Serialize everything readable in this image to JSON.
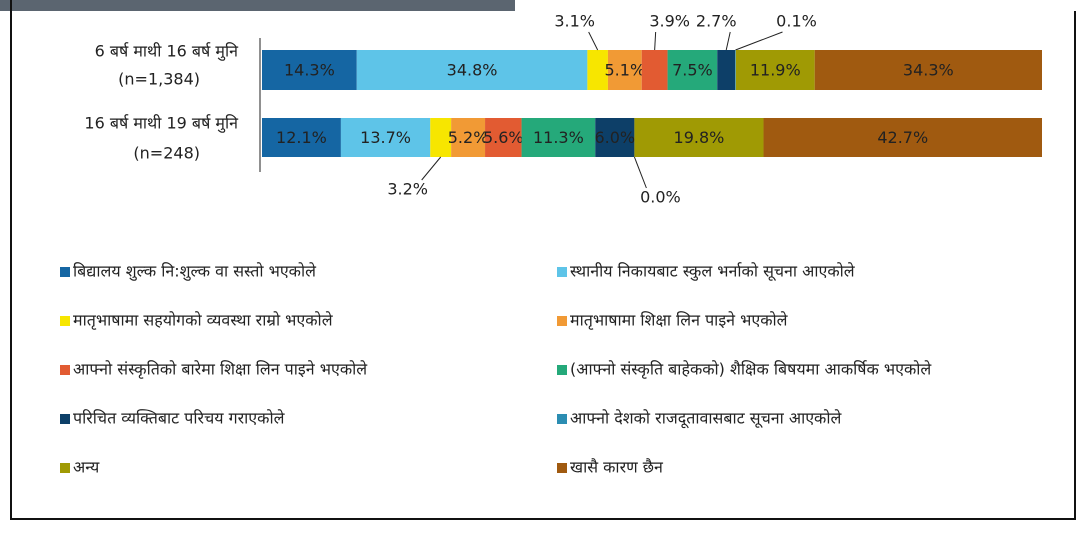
{
  "chart_data": {
    "type": "bar",
    "stacked": true,
    "orientation": "horizontal",
    "categories": [
      "6 बर्ष माथी 16 बर्ष मुनि",
      "16 बर्ष माथी 19 बर्ष मुनि"
    ],
    "category_notes": [
      "(n=1,384)",
      "(n=248)"
    ],
    "series": [
      {
        "name": "बिद्यालय शुल्क नि:शुल्क वा सस्तो भएकोले",
        "color": "#1566a3",
        "values": [
          14.3,
          12.1
        ],
        "value_labels": [
          "14.3%",
          "12.1%"
        ]
      },
      {
        "name": "स्थानीय निकायबाट स्कुल भर्नाको सूचना आएकोले",
        "color": "#5ec4e8",
        "values": [
          34.8,
          13.7
        ],
        "value_labels": [
          "34.8%",
          "13.7%"
        ]
      },
      {
        "name": "मातृभाषामा सहयोगको व्यवस्था राम्रो भएकोले",
        "color": "#f7e600",
        "values": [
          3.1,
          3.2
        ],
        "value_labels": [
          "3.1%",
          "3.2%"
        ]
      },
      {
        "name": "मातृभाषामा शिक्षा लिन पाइने भएकोले",
        "color": "#f19a35",
        "values": [
          5.1,
          5.2
        ],
        "value_labels": [
          "5.1%",
          "5.2%"
        ]
      },
      {
        "name": "आफ्नो संस्कृतिको बारेमा शिक्षा लिन पाइने भएकोले",
        "color": "#e25b32",
        "values": [
          3.9,
          5.6
        ],
        "value_labels": [
          "3.9%",
          "5.6%"
        ]
      },
      {
        "name": "(आफ्नो संस्कृति बाहेकको) शैक्षिक बिषयमा आकर्षिक भएकोले",
        "color": "#25a97a",
        "values": [
          7.5,
          11.3
        ],
        "value_labels": [
          "7.5%",
          "11.3%"
        ]
      },
      {
        "name": "परिचित व्यक्तिबाट परिचय गराएकोले",
        "color": "#0d3f68",
        "values": [
          2.7,
          6.0
        ],
        "value_labels": [
          "2.7%",
          "6.0%"
        ]
      },
      {
        "name": "आफ्नो देशको राजदूतावासबाट सूचना आएकोले",
        "color": "#2b8db2",
        "values": [
          0.1,
          0.0
        ],
        "value_labels": [
          "0.1%",
          "0.0%"
        ]
      },
      {
        "name": "अन्य",
        "color": "#a09a04",
        "values": [
          11.9,
          19.8
        ],
        "value_labels": [
          "11.9%",
          "19.8%"
        ]
      },
      {
        "name": "खासै कारण छैन",
        "color": "#a05a10",
        "values": [
          34.3,
          42.7
        ],
        "value_labels": [
          "34.3%",
          "42.7%"
        ]
      }
    ]
  }
}
